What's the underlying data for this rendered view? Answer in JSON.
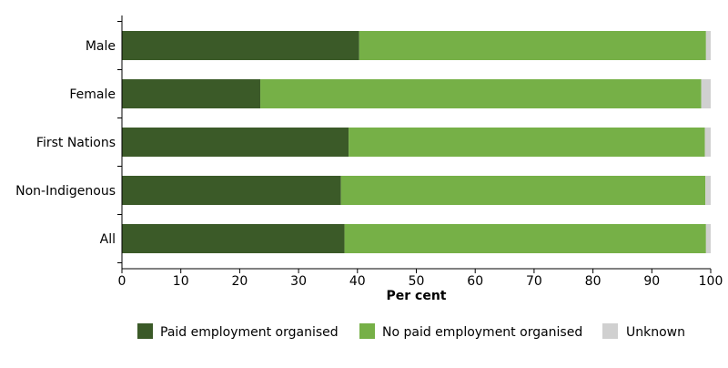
{
  "chart_data": {
    "type": "bar",
    "orientation": "horizontal",
    "stacked": true,
    "title": "",
    "xlabel": "Per cent",
    "ylabel": "",
    "xlim": [
      0,
      100
    ],
    "xticks": [
      "0",
      "10",
      "20",
      "30",
      "40",
      "50",
      "60",
      "70",
      "80",
      "90",
      "100"
    ],
    "categories": [
      "Male",
      "Female",
      "First Nations",
      "Non-Indigenous",
      "All"
    ],
    "series": [
      {
        "name": "Paid employment organised",
        "color": "#3b5a28",
        "values": [
          40.3,
          23.5,
          38.5,
          37.2,
          37.8
        ]
      },
      {
        "name": "No paid employment organised",
        "color": "#76b047",
        "values": [
          58.9,
          74.9,
          60.5,
          61.9,
          61.4
        ]
      },
      {
        "name": "Unknown",
        "color": "#d0d0d0",
        "values": [
          0.8,
          1.6,
          1.0,
          0.9,
          0.8
        ]
      }
    ],
    "grid": false,
    "legend_position": "bottom"
  }
}
